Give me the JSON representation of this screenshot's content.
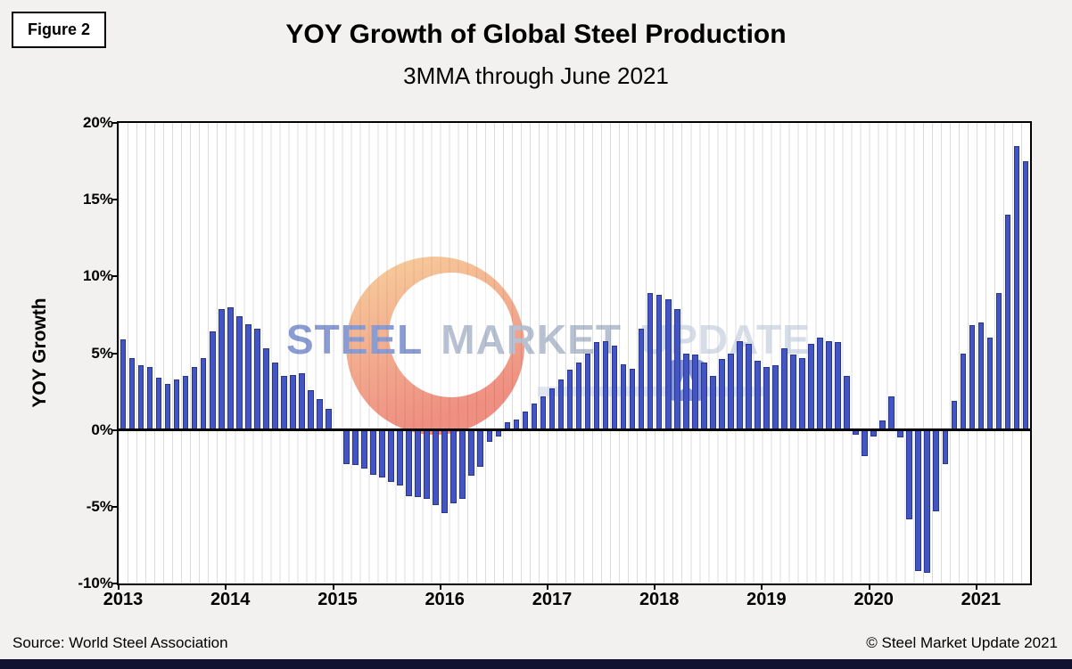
{
  "figure_label": "Figure 2",
  "title": "YOY Growth of Global Steel Production",
  "subtitle": "3MMA through June 2021",
  "y_axis_label": "YOY Growth",
  "footer": {
    "source": "Source: World Steel Association",
    "copyright": "© Steel Market Update 2021"
  },
  "watermark": {
    "word1": "STEEL",
    "word2": "MARKET",
    "word3": "UPDATE"
  },
  "colors": {
    "bar_fill": "#4355c4",
    "bar_border": "#28368f",
    "zero_line": "#000000",
    "gridline": "#dcdcdc",
    "plot_background": "#ffffff",
    "page_background": "#f2f1ef",
    "bottom_bar": "#10122f",
    "watermark_steel": "#2d4cb0",
    "watermark_market": "#7f90ad",
    "watermark_update": "#b5c3d6",
    "watermark_circle_top": "#f0a04a",
    "watermark_circle_bottom": "#e2351d"
  },
  "chart_data": {
    "type": "bar",
    "title": "YOY Growth of Global Steel Production",
    "subtitle": "3MMA through June 2021",
    "xlabel": "",
    "ylabel": "YOY Growth",
    "unit": "percent",
    "ylim": [
      -10,
      20
    ],
    "ytick_values": [
      20,
      15,
      10,
      5,
      0,
      -5,
      -10
    ],
    "ytick_labels": [
      "20%",
      "15%",
      "10%",
      "5%",
      "0%",
      "-5%",
      "-10%"
    ],
    "x_year_labels": [
      "2013",
      "2014",
      "2015",
      "2016",
      "2017",
      "2018",
      "2019",
      "2020",
      "2021"
    ],
    "x_start": "2013-01",
    "x_end": "2021-06",
    "frequency": "monthly",
    "grid": "vertical-monthly",
    "legend": "none",
    "values": [
      5.9,
      4.7,
      4.2,
      4.1,
      3.4,
      3.0,
      3.3,
      3.5,
      4.1,
      4.7,
      6.4,
      7.9,
      8.0,
      7.4,
      6.9,
      6.6,
      5.3,
      4.4,
      3.5,
      3.6,
      3.7,
      2.6,
      2.0,
      1.4,
      0.1,
      -2.2,
      -2.3,
      -2.5,
      -2.9,
      -3.1,
      -3.4,
      -3.6,
      -4.3,
      -4.4,
      -4.5,
      -4.9,
      -5.4,
      -4.8,
      -4.5,
      -3.0,
      -2.4,
      -0.8,
      -0.4,
      0.5,
      0.7,
      1.2,
      1.7,
      2.2,
      2.7,
      3.3,
      3.9,
      4.4,
      5.0,
      5.7,
      5.8,
      5.5,
      4.3,
      4.0,
      6.6,
      8.9,
      8.8,
      8.5,
      7.9,
      5.0,
      4.9,
      4.4,
      3.5,
      4.6,
      5.0,
      5.8,
      5.6,
      4.5,
      4.1,
      4.2,
      5.3,
      4.9,
      4.7,
      5.6,
      6.0,
      5.8,
      5.7,
      3.5,
      -0.3,
      -1.7,
      -0.4,
      0.6,
      2.2,
      -0.5,
      -5.8,
      -9.2,
      -9.3,
      -5.3,
      -2.2,
      1.9,
      5.0,
      6.8,
      7.0,
      6.0,
      8.9,
      14.0,
      18.5,
      17.5
    ]
  }
}
